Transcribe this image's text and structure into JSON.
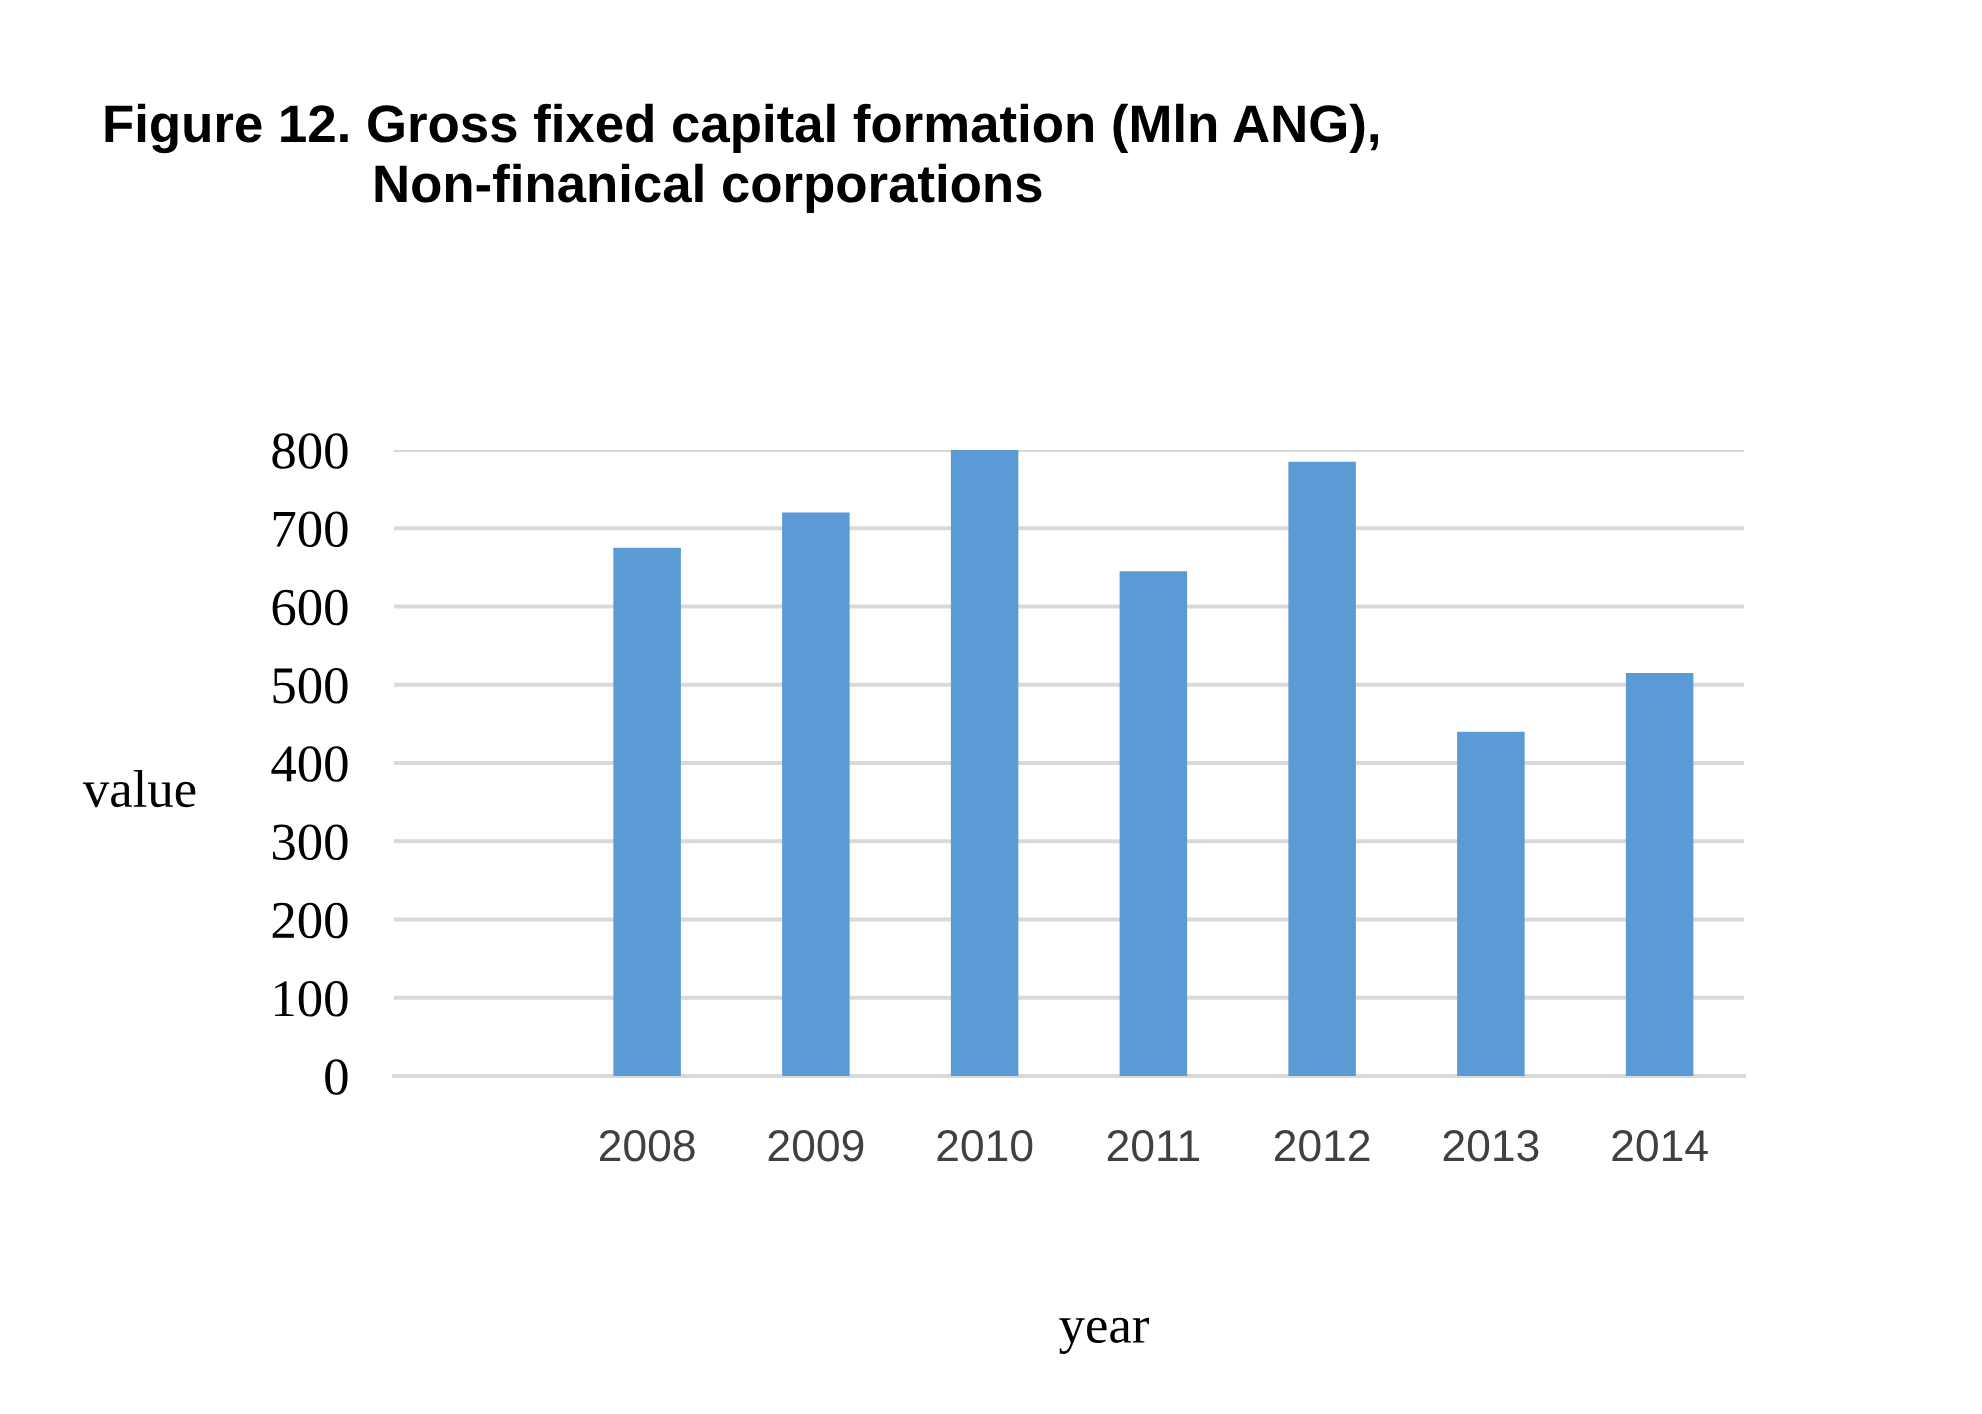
{
  "chart_data": {
    "type": "bar",
    "title": "Figure 12. Gross fixed capital formation (Mln ANG),\nNon-finanical corporations",
    "xlabel": "year",
    "ylabel": "value",
    "categories": [
      null,
      "2008",
      "2009",
      "2010",
      "2011",
      "2012",
      "2013",
      "2014"
    ],
    "values": [
      null,
      675,
      720,
      800,
      645,
      785,
      440,
      515
    ],
    "color": "#5b9bd5",
    "ylim": [
      0,
      800
    ],
    "yticks": [
      0,
      100,
      200,
      300,
      400,
      500,
      600,
      700,
      800
    ],
    "grid": "y"
  }
}
